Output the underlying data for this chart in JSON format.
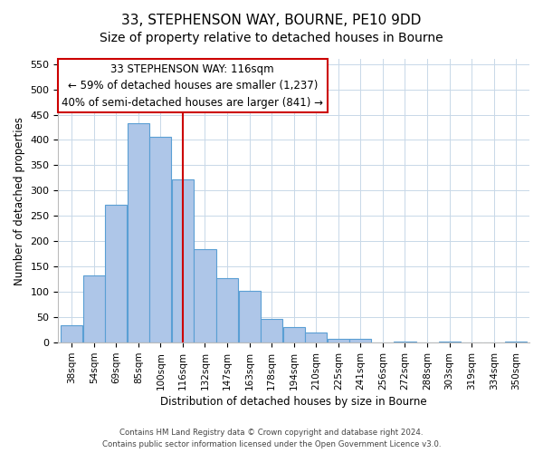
{
  "title": "33, STEPHENSON WAY, BOURNE, PE10 9DD",
  "subtitle": "Size of property relative to detached houses in Bourne",
  "xlabel": "Distribution of detached houses by size in Bourne",
  "ylabel": "Number of detached properties",
  "bar_labels": [
    "38sqm",
    "54sqm",
    "69sqm",
    "85sqm",
    "100sqm",
    "116sqm",
    "132sqm",
    "147sqm",
    "163sqm",
    "178sqm",
    "194sqm",
    "210sqm",
    "225sqm",
    "241sqm",
    "256sqm",
    "272sqm",
    "288sqm",
    "303sqm",
    "319sqm",
    "334sqm",
    "350sqm"
  ],
  "bar_values": [
    35,
    133,
    272,
    433,
    407,
    323,
    184,
    128,
    103,
    46,
    30,
    20,
    8,
    8,
    0,
    3,
    0,
    2,
    0,
    0,
    3
  ],
  "bar_color": "#aec6e8",
  "bar_edge_color": "#5a9fd4",
  "vline_index": 5,
  "vline_color": "#cc0000",
  "annotation_line1": "33 STEPHENSON WAY: 116sqm",
  "annotation_line2": "← 59% of detached houses are smaller (1,237)",
  "annotation_line3": "40% of semi-detached houses are larger (841) →",
  "annotation_box_edge": "#cc0000",
  "ylim": [
    0,
    560
  ],
  "yticks": [
    0,
    50,
    100,
    150,
    200,
    250,
    300,
    350,
    400,
    450,
    500,
    550
  ],
  "footer_line1": "Contains HM Land Registry data © Crown copyright and database right 2024.",
  "footer_line2": "Contains public sector information licensed under the Open Government Licence v3.0.",
  "grid_color": "#c8d8e8",
  "title_fontsize": 11,
  "subtitle_fontsize": 10
}
